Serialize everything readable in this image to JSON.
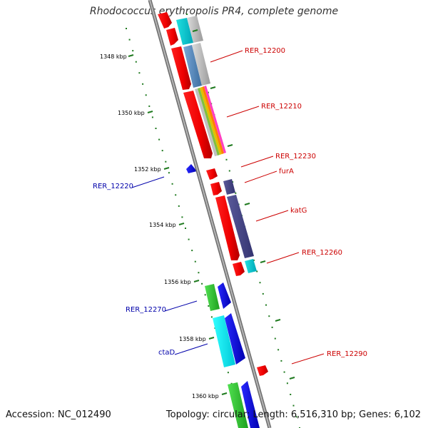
{
  "title": "Rhodococcus erythropolis PR4, complete genome",
  "footer": {
    "accession": "Accession: NC_012490",
    "summary": "Topology: circular; Length: 6,516,310 bp; Genes: 6,102"
  },
  "colors": {
    "backbone": "#8c8c8c",
    "ticks": "#1f7a1f",
    "forward_label": "#cc0000",
    "reverse_label": "#0000aa"
  },
  "axis_ticks": [
    {
      "label": "1348 kbp"
    },
    {
      "label": "1350 kbp"
    },
    {
      "label": "1352 kbp"
    },
    {
      "label": "1354 kbp"
    },
    {
      "label": "1356 kbp"
    },
    {
      "label": "1358 kbp"
    },
    {
      "label": "1360 kbp"
    }
  ],
  "gene_labels": [
    {
      "text": "RER_12200",
      "strand": "forward"
    },
    {
      "text": "RER_12210",
      "strand": "forward"
    },
    {
      "text": "RER_12230",
      "strand": "forward"
    },
    {
      "text": "furA",
      "strand": "forward"
    },
    {
      "text": "katG",
      "strand": "forward"
    },
    {
      "text": "RER_12260",
      "strand": "forward"
    },
    {
      "text": "RER_12290",
      "strand": "forward"
    },
    {
      "text": "RER_12220",
      "strand": "reverse"
    },
    {
      "text": "RER_12270",
      "strand": "reverse"
    },
    {
      "text": "ctaD",
      "strand": "reverse"
    }
  ]
}
